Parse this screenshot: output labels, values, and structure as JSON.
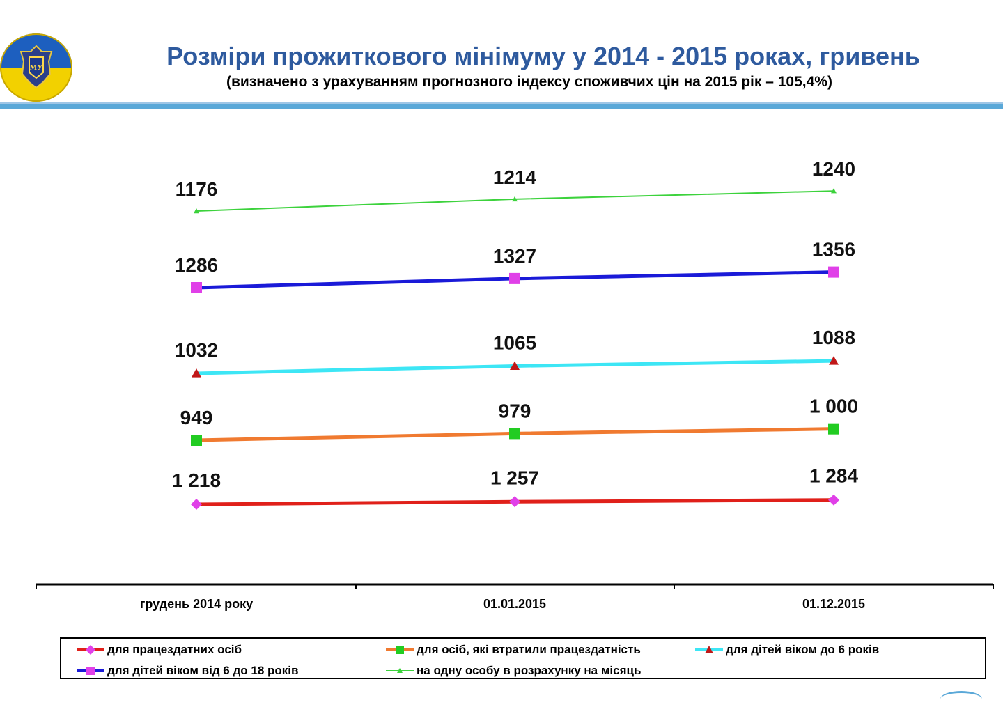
{
  "header": {
    "title": "Розміри  прожиткового мінімуму у 2014 - 2015 роках, гривень",
    "subtitle": "(визначено з урахуванням  прогнозного індексу споживчих цін на  2015 рік – 105,4%)",
    "logo_icon": "ministry-emblem-icon",
    "logo_colors": [
      "#1d5fbf",
      "#f2d100"
    ]
  },
  "chart_data": {
    "type": "line",
    "title": "Розміри  прожиткового мінімуму у 2014 - 2015 роках, гривень",
    "subtitle": "(визначено з урахуванням  прогнозного індексу споживчих цін на  2015 рік – 105,4%)",
    "categories": [
      "грудень 2014 року",
      "01.01.2015",
      "01.12.2015"
    ],
    "xlabel": "",
    "ylabel": "",
    "grid": false,
    "legend_position": "bottom",
    "series": [
      {
        "name": "на одну особу в розрахунку на місяць",
        "values": [
          1176,
          1214,
          1240
        ],
        "labels": [
          "1176",
          "1214",
          "1240"
        ],
        "line_color": "#3cd23c",
        "marker_color": "#3cd23c",
        "marker": "triangle",
        "line_style": "thin"
      },
      {
        "name": "для дітей віком від 6 до 18 років",
        "values": [
          1286,
          1327,
          1356
        ],
        "labels": [
          "1286",
          "1327",
          "1356"
        ],
        "line_color": "#1a1ad8",
        "marker_color": "#e040e8",
        "marker": "square",
        "line_style": "thick"
      },
      {
        "name": "для дітей віком до 6 років",
        "values": [
          1032,
          1065,
          1088
        ],
        "labels": [
          "1032",
          "1065",
          "1088"
        ],
        "line_color": "#3de6f5",
        "marker_color": "#c01818",
        "marker": "triangle",
        "line_style": "thick"
      },
      {
        "name": "для осіб, які втратили працездатність",
        "values": [
          949,
          979,
          1000
        ],
        "labels": [
          "949",
          "979",
          "1 000"
        ],
        "line_color": "#f07a30",
        "marker_color": "#22cc22",
        "marker": "square",
        "line_style": "thick"
      },
      {
        "name": "для працездатних осіб",
        "values": [
          1218,
          1257,
          1284
        ],
        "labels": [
          "1 218",
          "1 257",
          "1 284"
        ],
        "line_color": "#e0201a",
        "marker_color": "#e040e8",
        "marker": "diamond",
        "line_style": "thick"
      }
    ]
  },
  "legend": {
    "items": [
      {
        "label": "для працездатних осіб",
        "series_index": 4
      },
      {
        "label": "для осіб, які втратили працездатність",
        "series_index": 3
      },
      {
        "label": "для дітей віком до 6 років",
        "series_index": 2
      },
      {
        "label": "для дітей віком від 6 до 18 років",
        "series_index": 1
      },
      {
        "label": "на одну особу в розрахунку на місяць",
        "series_index": 0
      }
    ]
  }
}
